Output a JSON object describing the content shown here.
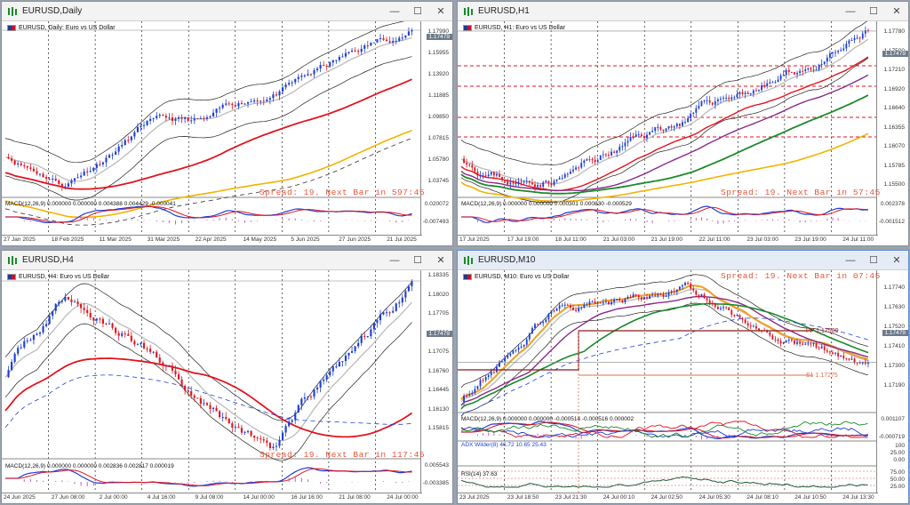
{
  "windows": [
    {
      "id": "w1",
      "title": "EURUSD,Daily",
      "symbol_label": "EURUSD, Daily: Euro vs US Dollar",
      "price_ticks": [
        "1.17990",
        "1.15955",
        "1.13920",
        "1.11885",
        "1.09850",
        "1.07815",
        "1.05780",
        "1.03745"
      ],
      "price_tag": "1.17479",
      "spread_text": "Spread: 19. Next Bar in 597:45",
      "indicator_label": "MACD(12,26,9) 0.000000 0.000000 0.004388 0.004429 -0.000041",
      "indicator_ticks": [
        "0.020072",
        "-0.007493"
      ],
      "time_labels": [
        "27 Jan 2025",
        "18 Feb 2025",
        "11 Mar 2025",
        "31 Mar 2025",
        "22 Apr 2025",
        "14 May 2025",
        "5 Jun 2025",
        "27 Jun 2025",
        "21 Jul 2025"
      ]
    },
    {
      "id": "w2",
      "title": "EURUSD,H1",
      "symbol_label": "EURUSD, H1: Euro vs US Dollar",
      "price_ticks": [
        "1.17780",
        "1.17500",
        "1.17210",
        "1.16920",
        "1.16640",
        "1.16355",
        "1.16070",
        "1.15785",
        "1.15500"
      ],
      "price_tag": "1.17479",
      "spread_text": "Spread: 19. Next Bar in 57:45",
      "indicator_label": "MACD(12,26,9) 0.000000 0.000000 0.000301 0.000830 -0.000529",
      "indicator_ticks": [
        "0.002378",
        "-0.001512"
      ],
      "time_labels": [
        "17 Jul 2025",
        "17 Jul 19:00",
        "18 Jul 11:00",
        "21 Jul 03:00",
        "21 Jul 19:00",
        "22 Jul 11:00",
        "23 Jul 03:00",
        "23 Jul 19:00",
        "24 Jul 11:00"
      ]
    },
    {
      "id": "w3",
      "title": "EURUSD,H4",
      "symbol_label": "EURUSD, H4: Euro vs US Dollar",
      "price_ticks": [
        "1.18335",
        "1.18020",
        "1.17705",
        "1.17390",
        "1.17075",
        "1.16760",
        "1.16445",
        "1.16130",
        "1.15815"
      ],
      "price_tag": "1.17479",
      "spread_text": "Spread: 19. Next Bar in 117:45",
      "indicator_label": "MACD(12,26,9) 0.000000 0.000000 0.002836 0.002817 0.000019",
      "indicator_ticks": [
        "0.005543",
        "-0.003385"
      ],
      "time_labels": [
        "24 Jun 2025",
        "27 Jun 08:00",
        "2 Jul 00:00",
        "4 Jul 16:00",
        "9 Jul 08:00",
        "14 Jul 00:00",
        "16 Jul 16:00",
        "21 Jul 08:00",
        "24 Jul 00:00"
      ]
    },
    {
      "id": "w4",
      "title": "EURUSD,M10",
      "symbol_label": "EURUSD, M10: Euro vs US Dollar",
      "price_ticks": [
        "1.17740",
        "1.17630",
        "1.17520",
        "1.17410",
        "1.17300",
        "1.17190"
      ],
      "price_tag": "1.17479",
      "spread_text": "Spread: 19. Next Bar in 07:45",
      "pp_label": "PP 1.17509",
      "s1_label": "S1 1.17275",
      "indicator_label": "MACD(12,26,9) 0.000000 0.000000 -0.000514 -0.000516 0.000002",
      "indicator_ticks": [
        "0.001107",
        "-0.000719"
      ],
      "adx_label": "ADX Wilder(8) 46.72 10.65 25.43",
      "adx_ticks": [
        "100",
        "25.00",
        "0.00"
      ],
      "rsi_label": "RSI(14) 37.63",
      "rsi_ticks": [
        "75.00",
        "50.00",
        "25.00"
      ],
      "time_labels": [
        "23 Jul 2025",
        "23 Jul 18:50",
        "23 Jul 21:30",
        "24 Jul 00:10",
        "24 Jul 02:50",
        "24 Jul 05:30",
        "24 Jul 08:10",
        "24 Jul 10:50",
        "24 Jul 13:30"
      ]
    }
  ],
  "window_controls": {
    "minimize": "—",
    "restore": "☐",
    "close": "✕"
  },
  "colors": {
    "bull": "#1d3fd6",
    "bear": "#e0151f",
    "ma_red": "#e0151f",
    "ma_gold": "#f2b300",
    "ma_green": "#1a8a2a",
    "spread": "#e8553a"
  }
}
